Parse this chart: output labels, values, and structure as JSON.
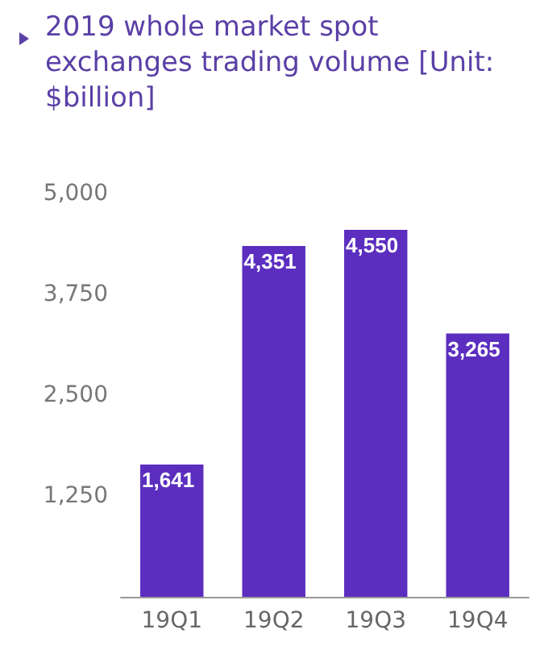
{
  "chart_data": {
    "type": "bar",
    "title": "2019 whole market spot exchanges trading volume [Unit: $billion]",
    "categories": [
      "19Q1",
      "19Q2",
      "19Q3",
      "19Q4"
    ],
    "values": [
      1641,
      4351,
      4550,
      3265
    ],
    "value_labels": [
      "1,641",
      "4,351",
      "4,550",
      "3,265"
    ],
    "color": "#5b2ec0",
    "ylim": [
      0,
      5000
    ],
    "yticks": [
      {
        "value": 0,
        "label": null
      },
      {
        "value": 1250,
        "label": "1,250"
      },
      {
        "value": 2500,
        "label": "2,500"
      },
      {
        "value": 3750,
        "label": "3,750"
      },
      {
        "value": 5000,
        "label": "5,000"
      }
    ],
    "grid": false
  }
}
